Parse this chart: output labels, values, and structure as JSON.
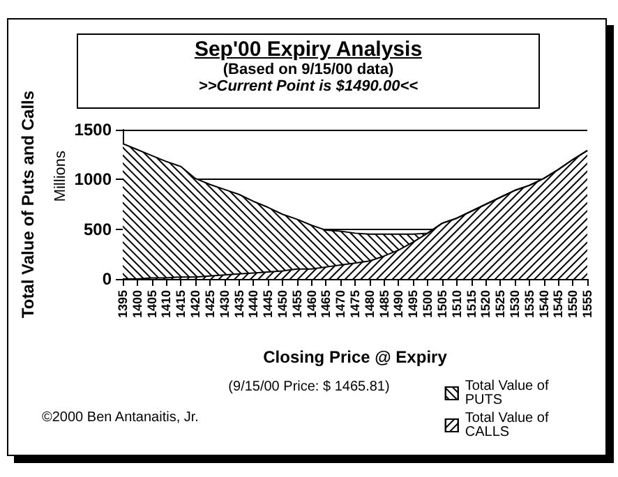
{
  "chart_data": {
    "type": "area",
    "title": "Sep'00 Expiry Analysis",
    "subtitle": "(Based on 9/15/00 data)",
    "xlabel": "Closing Price @ Expiry",
    "ylabel": "Total Value of Puts and Calls",
    "annotations": [
      ">>Current Point is $1490.00<<",
      "(9/15/00 Price: $  1465.81)",
      "©2000 Ben Antanaitis, Jr.",
      "Millions"
    ],
    "categories": [
      "1395",
      "1400",
      "1405",
      "1410",
      "1415",
      "1420",
      "1425",
      "1430",
      "1435",
      "1440",
      "1445",
      "1450",
      "1455",
      "1460",
      "1465",
      "1470",
      "1475",
      "1480",
      "1485",
      "1490",
      "1495",
      "1500",
      "1505",
      "1510",
      "1515",
      "1520",
      "1525",
      "1530",
      "1535",
      "1540",
      "1545",
      "1550",
      "1555"
    ],
    "stacked": true,
    "series": [
      {
        "name": "Total Value of CALLS",
        "color": "#000000",
        "values": [
          0,
          0,
          10,
          10,
          20,
          20,
          30,
          40,
          50,
          60,
          70,
          80,
          100,
          100,
          120,
          140,
          160,
          180,
          230,
          290,
          370,
          460,
          560,
          610,
          680,
          750,
          820,
          890,
          940,
          1010,
          1100,
          1200,
          1290
        ]
      },
      {
        "name": "Total Value of PUTS",
        "color": "#000000",
        "values": [
          1360,
          1300,
          1230,
          1170,
          1110,
          990,
          920,
          860,
          800,
          720,
          650,
          570,
          500,
          440,
          370,
          340,
          300,
          270,
          220,
          160,
          80,
          0,
          0,
          0,
          0,
          0,
          0,
          0,
          0,
          0,
          0,
          0,
          0
        ]
      }
    ],
    "ylim": [
      0,
      1500
    ],
    "yticks": [
      0,
      500,
      1000,
      1500
    ],
    "grid": "y",
    "legend": "bottom right",
    "marker": "none",
    "line_style": "solid"
  }
}
